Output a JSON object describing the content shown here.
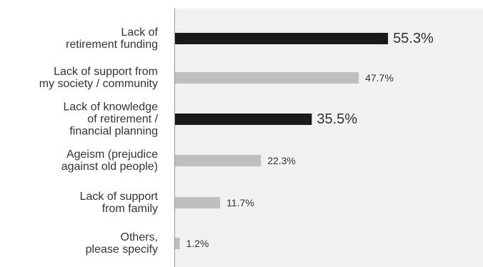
{
  "chart_data": {
    "type": "bar",
    "orientation": "horizontal",
    "categories": [
      [
        "Lack of",
        "retirement funding"
      ],
      [
        "Lack of support from",
        "my society / community"
      ],
      [
        "Lack of knowledge",
        "of retirement /",
        "financial planning"
      ],
      [
        "Ageism (prejudice",
        "against old people)"
      ],
      [
        "Lack of support",
        "from family"
      ],
      [
        "Others,",
        "please specify"
      ]
    ],
    "values": [
      55.3,
      47.7,
      35.5,
      22.3,
      11.7,
      1.2
    ],
    "value_labels": [
      "55.3%",
      "47.7%",
      "35.5%",
      "22.3%",
      "11.7%",
      "1.2%"
    ],
    "highlighted": [
      true,
      false,
      true,
      false,
      false,
      false
    ],
    "xlim": [
      0,
      100
    ],
    "title": "",
    "xlabel": "",
    "ylabel": "",
    "grid": false,
    "colors": {
      "highlight": "#1a1a1a",
      "normal": "#bfbfbf",
      "plot_background": "#f1f1f1",
      "text": "#333333"
    }
  }
}
